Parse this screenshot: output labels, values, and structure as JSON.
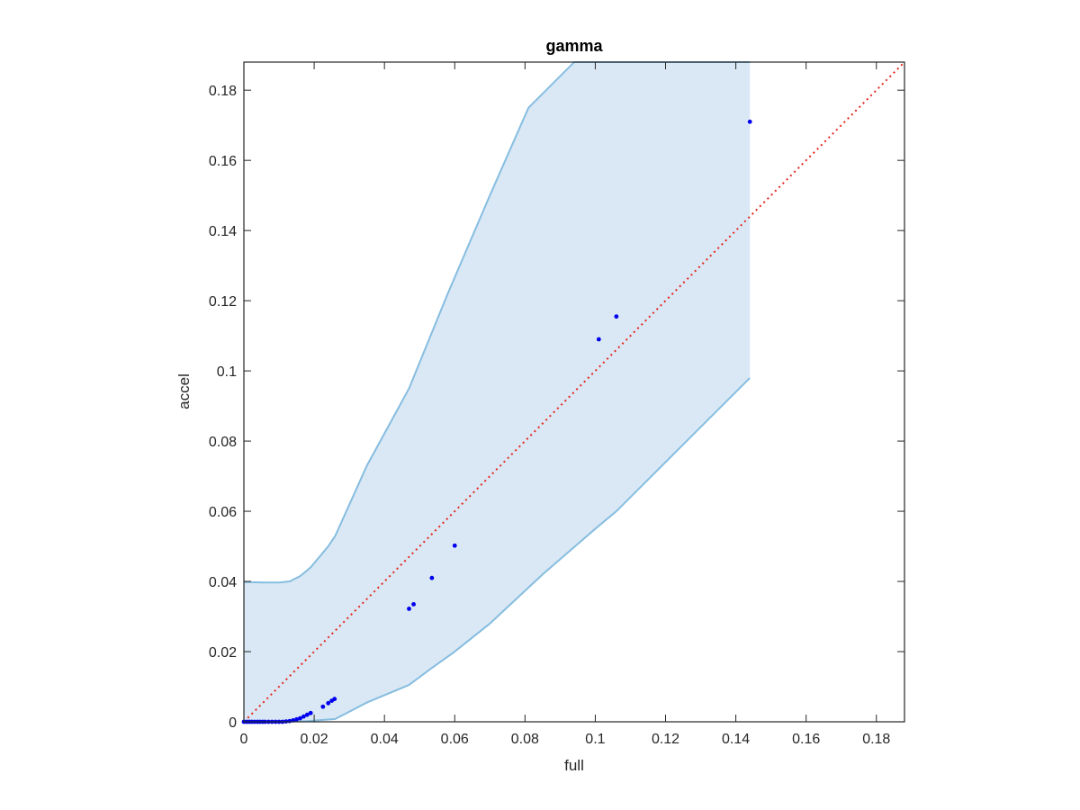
{
  "chart_data": {
    "type": "scatter",
    "title": "gamma",
    "xlabel": "full",
    "ylabel": "accel",
    "xlim": [
      0,
      0.188
    ],
    "ylim": [
      0,
      0.188
    ],
    "xticks": [
      0,
      0.02,
      0.04,
      0.06,
      0.08,
      0.1,
      0.12,
      0.14,
      0.16,
      0.18
    ],
    "yticks": [
      0,
      0.02,
      0.04,
      0.06,
      0.08,
      0.1,
      0.12,
      0.14,
      0.16,
      0.18
    ],
    "xtick_labels": [
      "0",
      "0.02",
      "0.04",
      "0.06",
      "0.08",
      "0.1",
      "0.12",
      "0.14",
      "0.16",
      "0.18"
    ],
    "ytick_labels": [
      "0",
      "0.02",
      "0.04",
      "0.06",
      "0.08",
      "0.1",
      "0.12",
      "0.14",
      "0.16",
      "0.18"
    ],
    "grid": false,
    "band": {
      "color": "#d9e8f4",
      "edge_color": "#86bde0",
      "upper": [
        [
          0,
          0.04
        ],
        [
          0.0003,
          0.0398
        ],
        [
          0.002,
          0.0398
        ],
        [
          0.006,
          0.0397
        ],
        [
          0.01,
          0.0397
        ],
        [
          0.013,
          0.04
        ],
        [
          0.016,
          0.0415
        ],
        [
          0.019,
          0.044
        ],
        [
          0.024,
          0.05
        ],
        [
          0.026,
          0.053
        ],
        [
          0.035,
          0.073
        ],
        [
          0.047,
          0.095
        ],
        [
          0.058,
          0.122
        ],
        [
          0.07,
          0.15
        ],
        [
          0.081,
          0.175
        ],
        [
          0.094,
          0.188
        ],
        [
          0.144,
          0.188
        ]
      ],
      "lower": [
        [
          0,
          0.0
        ],
        [
          0.01,
          0.0
        ],
        [
          0.018,
          0.0002
        ],
        [
          0.026,
          0.0008
        ],
        [
          0.035,
          0.0055
        ],
        [
          0.047,
          0.0105
        ],
        [
          0.053,
          0.015
        ],
        [
          0.06,
          0.02
        ],
        [
          0.07,
          0.028
        ],
        [
          0.085,
          0.042
        ],
        [
          0.1,
          0.055
        ],
        [
          0.106,
          0.06
        ],
        [
          0.144,
          0.098
        ]
      ]
    },
    "reference_line": {
      "style": "dotted",
      "color": "#e8251f",
      "from": [
        0,
        0
      ],
      "to": [
        0.188,
        0.188
      ]
    },
    "series": [
      {
        "color": "#0000ee",
        "points": [
          [
            0.0,
            0.0
          ],
          [
            0.0008,
            0.0
          ],
          [
            0.0015,
            0.0
          ],
          [
            0.0022,
            0.0
          ],
          [
            0.003,
            0.0
          ],
          [
            0.0038,
            0.0
          ],
          [
            0.0045,
            0.0
          ],
          [
            0.0053,
            0.0
          ],
          [
            0.006,
            0.0
          ],
          [
            0.007,
            0.0
          ],
          [
            0.008,
            0.0
          ],
          [
            0.009,
            0.0
          ],
          [
            0.01,
            0.0
          ],
          [
            0.011,
            0.0
          ],
          [
            0.012,
            0.0001
          ],
          [
            0.013,
            0.0002
          ],
          [
            0.014,
            0.0004
          ],
          [
            0.015,
            0.0007
          ],
          [
            0.016,
            0.001
          ],
          [
            0.017,
            0.0015
          ],
          [
            0.018,
            0.002
          ],
          [
            0.019,
            0.0025
          ],
          [
            0.0225,
            0.0043
          ],
          [
            0.024,
            0.0053
          ],
          [
            0.025,
            0.006
          ],
          [
            0.0258,
            0.0065
          ],
          [
            0.047,
            0.0322
          ],
          [
            0.0483,
            0.0335
          ],
          [
            0.0535,
            0.041
          ],
          [
            0.06,
            0.0502
          ],
          [
            0.101,
            0.109
          ],
          [
            0.106,
            0.1155
          ],
          [
            0.144,
            0.171
          ]
        ]
      }
    ]
  }
}
